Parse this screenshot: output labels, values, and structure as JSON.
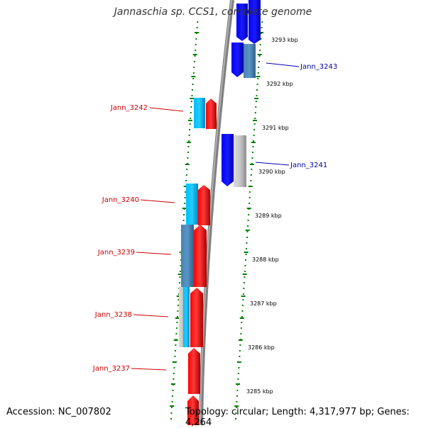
{
  "title": "Jannaschia sp. CCS1, complete genome",
  "accession": "Accession: NC_007802",
  "topology": "Topology: circular; Length: 4,317,977 bp; Genes: 4,264",
  "colors": {
    "forward_gene": "#ff0000",
    "reverse_gene": "#0000ff",
    "light_blue": "#00bfff",
    "steel_blue": "#4682b4",
    "gray_gene": "#c0c0c0",
    "left_label": "#cc0000",
    "right_label": "#0000aa",
    "tick": "#008000",
    "backbone": "#808080"
  },
  "scale_labels": [
    "3293 kbp",
    "3292 kbp",
    "3291 kbp",
    "3290 kbp",
    "3289 kbp",
    "3288 kbp",
    "3287 kbp",
    "3286 kbp",
    "3285 kbp"
  ],
  "gene_labels_left": [
    "Jann_3242",
    "Jann_3240",
    "Jann_3239",
    "Jann_3238",
    "Jann_3237"
  ],
  "gene_labels_right": [
    "Jann_3243",
    "Jann_3241"
  ]
}
